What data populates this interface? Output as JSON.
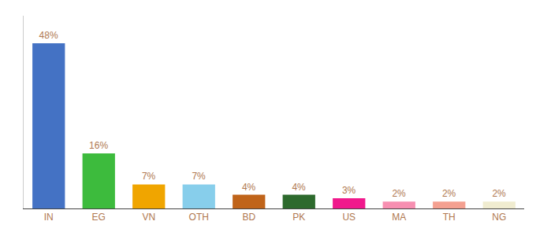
{
  "chart_data": {
    "type": "bar",
    "categories": [
      "IN",
      "EG",
      "VN",
      "OTH",
      "BD",
      "PK",
      "US",
      "MA",
      "TH",
      "NG"
    ],
    "values": [
      48,
      16,
      7,
      7,
      4,
      4,
      3,
      2,
      2,
      2
    ],
    "value_labels": [
      "48%",
      "16%",
      "7%",
      "7%",
      "4%",
      "4%",
      "3%",
      "2%",
      "2%",
      "2%"
    ],
    "colors": [
      "#4472c4",
      "#3dbb3d",
      "#f0a500",
      "#87ceeb",
      "#c0641a",
      "#2d6a2d",
      "#f0198c",
      "#f78fb1",
      "#f4a090",
      "#f0ecd0"
    ],
    "ylim": [
      0,
      56
    ],
    "data_labels": true,
    "tick_labels": "x",
    "grid": false
  }
}
